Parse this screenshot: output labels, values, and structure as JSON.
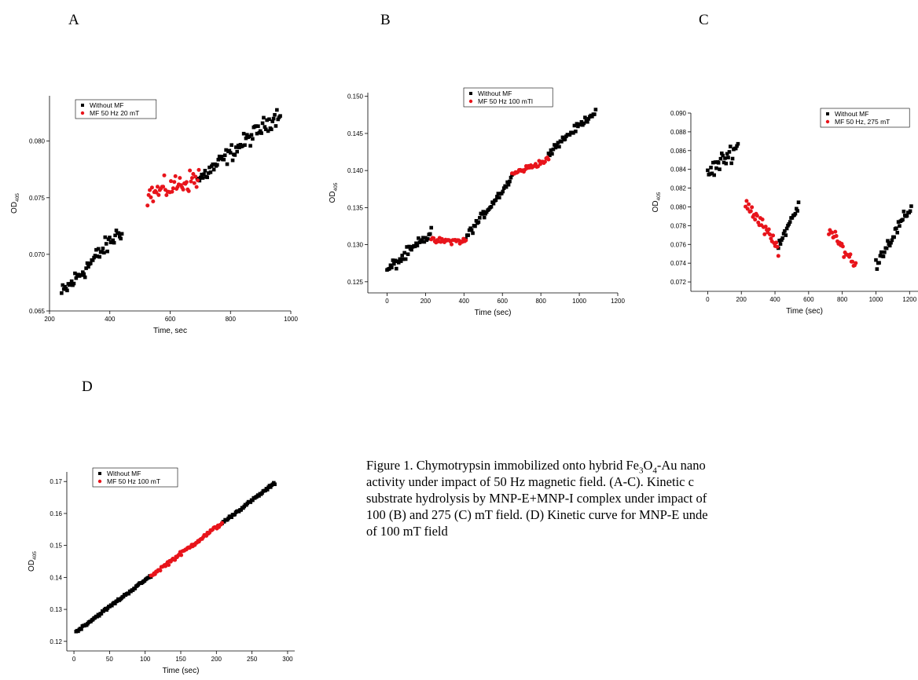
{
  "panels": [
    "A",
    "B",
    "C",
    "D"
  ],
  "caption": {
    "part1": "Figure 1. Chymotrypsin immobilized onto hybrid Fe",
    "sub1": "3",
    "part2": "O",
    "sub2": "4",
    "part3": "-Au nano",
    "line2": "activity under impact of 50 Hz magnetic field. (A-C). Kinetic c",
    "line3": "substrate hydrolysis by MNP-E+MNP-I complex under impact of",
    "line4": "100 (B) and 275 (C) mT field. (D) Kinetic curve for MNP-E unde",
    "line5": "of 100 mT field"
  },
  "colors": {
    "black_series": "#000000",
    "red_series": "#e8141b"
  },
  "chart_data": [
    {
      "id": "A",
      "type": "scatter",
      "title": "",
      "xlabel": "Time, sec",
      "ylabel": "OD405",
      "xlim": [
        200,
        1000
      ],
      "ylim": [
        0.065,
        0.084
      ],
      "xticks": [
        "200",
        "400",
        "600",
        "800",
        "1000"
      ],
      "yticks": [
        "0.065",
        "0.070",
        "0.075",
        "0.080"
      ],
      "legend": {
        "placement": "top-left",
        "entries": [
          "Without MF",
          "MF 50 Hz 20 mT"
        ]
      },
      "series": [
        {
          "name": "Without MF",
          "color": "#000000",
          "marker": "square",
          "segments": [
            {
              "x_start": 240,
              "x_end": 440,
              "y_start": 0.0665,
              "y_end": 0.0722,
              "noise": 0.0012
            },
            {
              "x_start": 690,
              "x_end": 965,
              "y_start": 0.0765,
              "y_end": 0.0825,
              "noise": 0.0011
            }
          ]
        },
        {
          "name": "MF 50 Hz 20 mT",
          "color": "#e8141b",
          "marker": "circle",
          "segments": [
            {
              "x_start": 525,
              "x_end": 695,
              "y_start": 0.0752,
              "y_end": 0.0768,
              "noise": 0.0014
            }
          ]
        }
      ]
    },
    {
      "id": "B",
      "type": "scatter",
      "title": "",
      "xlabel": "Time (sec)",
      "ylabel": "OD405",
      "xlim": [
        -100,
        1200
      ],
      "ylim": [
        0.1235,
        0.1505
      ],
      "xticks": [
        "0",
        "200",
        "400",
        "600",
        "800",
        "1000",
        "1200"
      ],
      "yticks": [
        "0.125",
        "0.130",
        "0.135",
        "0.140",
        "0.145",
        "0.150"
      ],
      "legend": {
        "placement": "top-center",
        "entries": [
          "Without MF",
          "MF 50 Hz 100 mTl"
        ]
      },
      "series": [
        {
          "name": "Without MF",
          "color": "#000000",
          "marker": "square",
          "segments": [
            {
              "x_start": 0,
              "x_end": 230,
              "y_start": 0.1265,
              "y_end": 0.1315,
              "noise": 0.0012
            },
            {
              "x_start": 410,
              "x_end": 650,
              "y_start": 0.131,
              "y_end": 0.139,
              "noise": 0.0008
            },
            {
              "x_start": 840,
              "x_end": 1085,
              "y_start": 0.1425,
              "y_end": 0.148,
              "noise": 0.0007
            }
          ]
        },
        {
          "name": "MF 50 Hz 100 mTl",
          "color": "#e8141b",
          "marker": "circle",
          "segments": [
            {
              "x_start": 230,
              "x_end": 410,
              "y_start": 0.1305,
              "y_end": 0.1305,
              "noise": 0.0006
            },
            {
              "x_start": 650,
              "x_end": 840,
              "y_start": 0.1395,
              "y_end": 0.1415,
              "noise": 0.0006
            }
          ]
        }
      ]
    },
    {
      "id": "C",
      "type": "scatter",
      "title": "",
      "xlabel": "Time (sec)",
      "ylabel": "OD405",
      "xlim": [
        -100,
        1250
      ],
      "ylim": [
        0.071,
        0.09
      ],
      "xticks": [
        "0",
        "200",
        "400",
        "600",
        "800",
        "1000",
        "1200"
      ],
      "yticks": [
        "0.072",
        "0.074",
        "0.076",
        "0.078",
        "0.080",
        "0.082",
        "0.084",
        "0.086",
        "0.088",
        "0.090"
      ],
      "legend": {
        "placement": "top-right",
        "entries": [
          "Without MF",
          "MF 50 Hz, 275 mT"
        ]
      },
      "series": [
        {
          "name": "Without MF",
          "color": "#000000",
          "marker": "square",
          "segments": [
            {
              "x_start": 0,
              "x_end": 180,
              "y_start": 0.0835,
              "y_end": 0.0865,
              "noise": 0.0014
            },
            {
              "x_start": 420,
              "x_end": 540,
              "y_start": 0.076,
              "y_end": 0.08,
              "noise": 0.001
            },
            {
              "x_start": 1000,
              "x_end": 1210,
              "y_start": 0.074,
              "y_end": 0.08,
              "noise": 0.001
            }
          ]
        },
        {
          "name": "MF 50 Hz, 275 mT",
          "color": "#e8141b",
          "marker": "circle",
          "segments": [
            {
              "x_start": 225,
              "x_end": 420,
              "y_start": 0.0805,
              "y_end": 0.0755,
              "noise": 0.0012
            },
            {
              "x_start": 720,
              "x_end": 880,
              "y_start": 0.0775,
              "y_end": 0.0738,
              "noise": 0.0009
            }
          ]
        }
      ]
    },
    {
      "id": "D",
      "type": "scatter",
      "title": "",
      "xlabel": "Time (sec)",
      "ylabel": "OD405",
      "xlim": [
        -10,
        310
      ],
      "ylim": [
        0.117,
        0.173
      ],
      "xticks": [
        "0",
        "50",
        "100",
        "150",
        "200",
        "250",
        "300"
      ],
      "yticks": [
        "0.12",
        "0.13",
        "0.14",
        "0.15",
        "0.16",
        "0.17"
      ],
      "legend": {
        "placement": "top-left",
        "entries": [
          "Without MF",
          "MF 50 Hz 100 mT"
        ]
      },
      "series": [
        {
          "name": "Without MF",
          "color": "#000000",
          "marker": "square",
          "segments": [
            {
              "x_start": 3,
              "x_end": 108,
              "y_start": 0.123,
              "y_end": 0.1405,
              "noise": 0.0006
            },
            {
              "x_start": 208,
              "x_end": 282,
              "y_start": 0.157,
              "y_end": 0.1695,
              "noise": 0.0006
            }
          ]
        },
        {
          "name": "MF 50 Hz 100 mT",
          "color": "#e8141b",
          "marker": "circle",
          "segments": [
            {
              "x_start": 108,
              "x_end": 208,
              "y_start": 0.1405,
              "y_end": 0.157,
              "noise": 0.0009
            }
          ]
        }
      ]
    }
  ]
}
